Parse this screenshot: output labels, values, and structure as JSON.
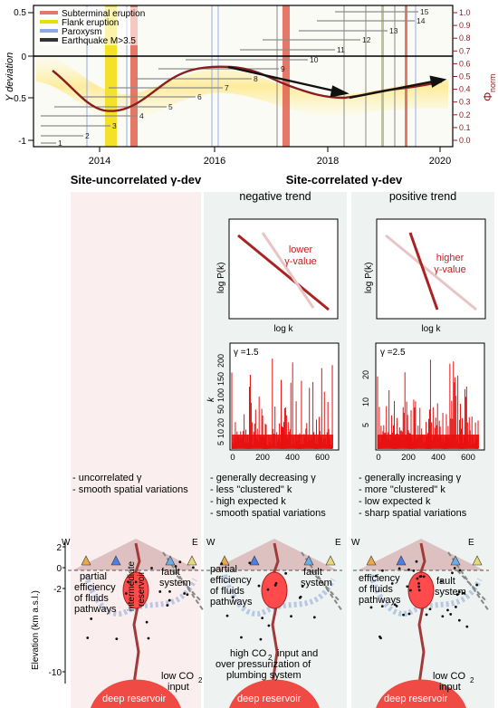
{
  "timeline": {
    "legend": [
      "Subterminal eruption",
      "Flank eruption",
      "Paroxysm",
      "Earthquake M>3.5"
    ],
    "legend_colors": [
      "#e07a6a",
      "#e8e000",
      "#8fa8e8",
      "#333333"
    ],
    "ylabel": "Y deviation",
    "yticks": [
      "0.5",
      "0",
      "-0.5",
      "-1"
    ],
    "right_ylabel_main": "Φ",
    "right_ylabel_sub": "norm",
    "right_ticks": [
      "1.0",
      "0.9",
      "0.8",
      "0.7",
      "0.6",
      "0.5",
      "0.4",
      "0.3",
      "0.2",
      "0.1",
      "0.0"
    ],
    "xticks": [
      "2014",
      "2016",
      "2018",
      "2020"
    ],
    "station_labels": [
      "1",
      "2",
      "3",
      "4",
      "5",
      "6",
      "7",
      "8",
      "9",
      "10",
      "11",
      "12",
      "13",
      "14",
      "15"
    ]
  },
  "sections": {
    "left_title": "Site-uncorrelated γ-dev",
    "right_title": "Site-correlated γ-dev",
    "neg_title": "negative trend",
    "pos_title": "positive trend"
  },
  "neg_plot": {
    "ylabel": "log P(k)",
    "xlabel": "log k",
    "note1": "lower",
    "note2": "γ-value"
  },
  "pos_plot": {
    "ylabel": "log P(k)",
    "xlabel": "log k",
    "note1": "higher",
    "note2": "γ-value"
  },
  "neg_hist": {
    "gamma": "γ =1.5",
    "ylabel": "k",
    "yticks": [
      "200",
      "150",
      "100",
      "50",
      "20",
      "10",
      "5"
    ],
    "xticks": [
      "0",
      "200",
      "400",
      "600"
    ]
  },
  "pos_hist": {
    "gamma": "γ =2.5",
    "yticks": [
      "20",
      "10",
      "5"
    ],
    "xticks": [
      "0",
      "200",
      "400",
      "600"
    ]
  },
  "desc_left": [
    "- uncorrelated  γ",
    "- smooth spatial variations"
  ],
  "desc_neg": [
    "- generally decreasing  γ",
    "- less \"clustered\" k",
    "- high expected k",
    "- smooth spatial variations"
  ],
  "desc_pos": [
    "- generally increasing  γ",
    "- more \"clustered\" k",
    "- low expected k",
    "- sharp spatial variations"
  ],
  "sections_bottom": {
    "ylabel": "Elevation (km a.s.l.)",
    "yticks": [
      "2",
      "0",
      "-2",
      "-10"
    ],
    "west": "W",
    "east": "E",
    "left": {
      "l1": "partial",
      "l2": "efficiency",
      "l3": "of fluids",
      "l4": "pathways",
      "res1": "intermediate",
      "res2": "reservoir",
      "fault1": "fault",
      "fault2": "system",
      "co2a": "low CO",
      "co2b": "input",
      "deep": "deep reservoir"
    },
    "mid": {
      "l1": "partial",
      "l2": "efficiency",
      "l3": "of fluids",
      "l4": "pathways",
      "fault1": "fault",
      "fault2": "system",
      "p1": "high CO",
      "p1b": " input and",
      "p2": "over pressurization of",
      "p3": "plumbing system",
      "deep": "deep reservoir"
    },
    "right": {
      "l1": "efficiency",
      "l2": "of fluids",
      "l3": "pathways",
      "fault1": "fault",
      "fault2": "system",
      "co2a": "low CO",
      "co2b": "input",
      "deep": "deep reservoir"
    }
  }
}
